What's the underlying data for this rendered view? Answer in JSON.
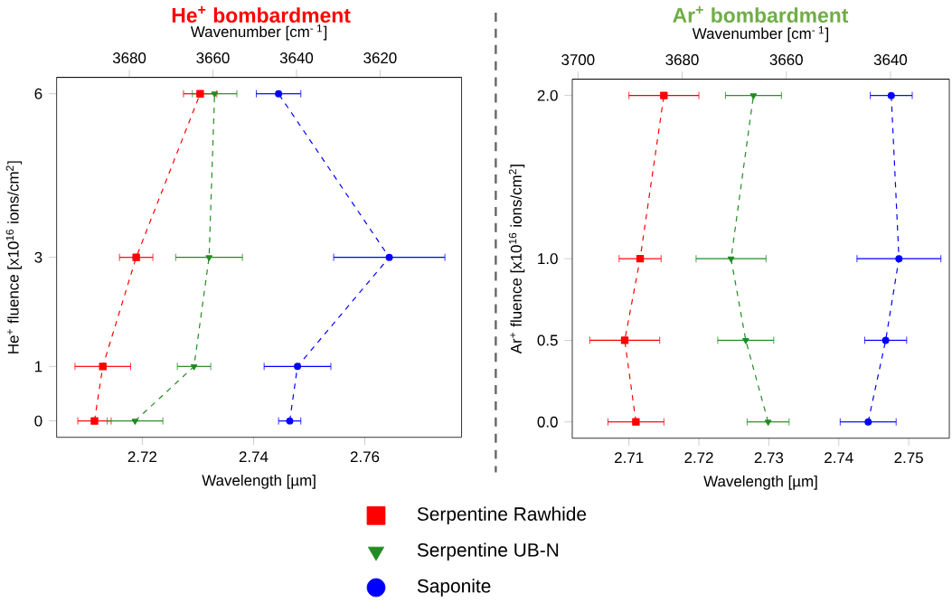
{
  "chart_data": [
    {
      "type": "line",
      "title": "He$^{+}$ bombardment",
      "xlabel": "Wavelength [µm]",
      "ylabel": "He$^{+}$ fluence [x10$^{16}$ ions/cm$^{2}$]",
      "x2label": "Wavenumber [cm$^{- 1}$]",
      "xlim": [
        2.7046,
        2.7774
      ],
      "xticks": [
        2.72,
        2.74,
        2.76
      ],
      "x2lim": [
        3697.4,
        3600.5
      ],
      "x2ticks": [
        3680,
        3660,
        3640,
        3620
      ],
      "ylim": [
        -0.3,
        6.3
      ],
      "yticks": [
        0,
        1,
        3,
        6
      ],
      "line_style": "dashed",
      "legend": "bottom",
      "series": [
        {
          "name": "Serpentine Rawhide",
          "color": "#ff0000",
          "marker": "square",
          "x": [
            2.7114,
            2.7129,
            2.7189,
            2.7304
          ],
          "values": [
            0,
            1,
            3,
            6
          ],
          "xerrors": [
            0.003,
            0.005,
            0.003,
            0.003
          ]
        },
        {
          "name": "Serpentine UB-N",
          "color": "#228b22",
          "marker": "triangle",
          "x": [
            2.7187,
            2.7293,
            2.732,
            2.733
          ],
          "values": [
            0,
            1,
            3,
            6
          ],
          "xerrors": [
            0.005,
            0.003,
            0.006,
            0.004
          ]
        },
        {
          "name": "Saponite",
          "color": "#0000ff",
          "marker": "circle",
          "x": [
            2.7465,
            2.7479,
            2.7644,
            2.7445
          ],
          "values": [
            0,
            1,
            3,
            6
          ],
          "xerrors": [
            0.002,
            0.006,
            0.01,
            0.004
          ]
        }
      ]
    },
    {
      "type": "line",
      "title": "Ar$^{+}$ bombardment",
      "xlabel": "Wavelength [µm]",
      "ylabel": "Ar$^{+}$ fluence [x10$^{16}$ ions/cm$^{2}$]",
      "x2label": "Wavenumber [cm$^{- 1}$]",
      "xlim": [
        2.7019,
        2.7558
      ],
      "xticks": [
        2.71,
        2.72,
        2.73,
        2.74,
        2.75
      ],
      "x2lim": [
        3701.1,
        3628.7
      ],
      "x2ticks": [
        3700,
        3680,
        3660,
        3640
      ],
      "ylim": [
        -0.1,
        2.1
      ],
      "yticks": [
        {
          "value": 0,
          "label": "0.0"
        },
        {
          "value": 0.5,
          "label": "0.5"
        },
        {
          "value": 1,
          "label": "1.0"
        },
        {
          "value": 2,
          "label": "2.0"
        }
      ],
      "line_style": "dashed",
      "series": [
        {
          "color": "#ff0000",
          "marker": "square",
          "x": [
            2.711,
            2.7094,
            2.7116,
            2.715
          ],
          "values": [
            0,
            0.5,
            1,
            2
          ],
          "xerrors": [
            0.004,
            0.005,
            0.003,
            0.005
          ]
        },
        {
          "color": "#228b22",
          "marker": "triangle",
          "x": [
            2.7299,
            2.7267,
            2.7246,
            2.7278
          ],
          "values": [
            0,
            0.5,
            1,
            2
          ],
          "xerrors": [
            0.003,
            0.004,
            0.005,
            0.004
          ]
        },
        {
          "color": "#0000ff",
          "marker": "circle",
          "x": [
            2.7442,
            2.7467,
            2.7486,
            2.7475
          ],
          "values": [
            0,
            0.5,
            1,
            2
          ],
          "xerrors": [
            0.004,
            0.003,
            0.006,
            0.003
          ]
        }
      ]
    }
  ]
}
